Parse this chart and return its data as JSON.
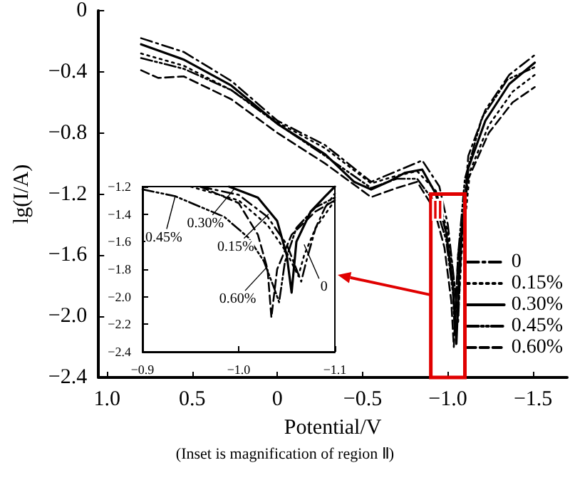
{
  "chart_data": [
    {
      "type": "line",
      "xlabel": "Potential/V",
      "ylabel": "lg(I/A)",
      "xlim": [
        1.05,
        -1.7
      ],
      "ylim": [
        -2.4,
        0
      ],
      "xticks": [
        {
          "value": 1.0,
          "label": "1.0"
        },
        {
          "value": 0.5,
          "label": "0.5"
        },
        0,
        {
          "value": -0.5,
          "label": "−0.5"
        },
        {
          "value": -1.0,
          "label": "−1.0"
        },
        {
          "value": -1.5,
          "label": "−1.5"
        }
      ],
      "yticks": [
        {
          "value": -2.4,
          "label": "−2.4"
        },
        {
          "value": -2.0,
          "label": "−2.0"
        },
        {
          "value": -1.6,
          "label": "−1.6"
        },
        {
          "value": -1.2,
          "label": "−1.2"
        },
        {
          "value": -0.8,
          "label": "−0.8"
        },
        {
          "value": -0.4,
          "label": "−0.4"
        },
        0
      ],
      "legend": "bottom right",
      "grid": false,
      "marker": "none",
      "annotations": [
        {
          "text": "Ⅱ",
          "x": -0.905,
          "y": -1.36
        },
        "(Inset is magnification of region Ⅱ)"
      ],
      "series": [
        {
          "name": "0",
          "color": "#000000",
          "line_style": "dashdot",
          "x": [
            0.8,
            0.55,
            0.27,
            0,
            -0.28,
            -0.55,
            -0.7,
            -0.85,
            -0.95,
            -1.0,
            -1.04,
            -1.06,
            -1.08,
            -1.12,
            -1.22,
            -1.36,
            -1.51
          ],
          "values": [
            -0.18,
            -0.27,
            -0.46,
            -0.72,
            -0.88,
            -1.12,
            -1.05,
            -0.98,
            -1.15,
            -1.4,
            -1.8,
            -2.05,
            -1.5,
            -0.95,
            -0.65,
            -0.42,
            -0.29
          ]
        },
        {
          "name": "0.15%",
          "color": "#000000",
          "line_style": "dotted",
          "x": [
            0.8,
            0.55,
            0.27,
            0,
            -0.28,
            -0.55,
            -0.7,
            -0.82,
            -0.93,
            -1.0,
            -1.04,
            -1.06,
            -1.08,
            -1.13,
            -1.24,
            -1.38,
            -1.51
          ],
          "values": [
            -0.28,
            -0.36,
            -0.52,
            -0.73,
            -0.9,
            -1.13,
            -1.08,
            -1.05,
            -1.18,
            -1.45,
            -1.8,
            -2.0,
            -1.6,
            -1.05,
            -0.75,
            -0.53,
            -0.42
          ]
        },
        {
          "name": "0.30%",
          "color": "#000000",
          "line_style": "solid",
          "x": [
            0.8,
            0.55,
            0.27,
            0,
            -0.28,
            -0.45,
            -0.55,
            -0.65,
            -0.75,
            -0.85,
            -0.93,
            -0.99,
            -1.03,
            -1.05,
            -1.07,
            -1.12,
            -1.22,
            -1.36,
            -1.51
          ],
          "values": [
            -0.22,
            -0.32,
            -0.49,
            -0.74,
            -0.94,
            -1.12,
            -1.17,
            -1.12,
            -1.06,
            -1.04,
            -1.2,
            -1.45,
            -1.8,
            -2.18,
            -1.6,
            -1.03,
            -0.72,
            -0.48,
            -0.34
          ]
        },
        {
          "name": "0.45%",
          "color": "#000000",
          "line_style": "dashdotdot",
          "x": [
            0.8,
            0.55,
            0.27,
            0,
            -0.28,
            -0.55,
            -0.7,
            -0.82,
            -0.92,
            -0.99,
            -1.03,
            -1.04,
            -1.06,
            -1.1,
            -1.2,
            -1.35,
            -1.51
          ],
          "values": [
            -0.31,
            -0.38,
            -0.52,
            -0.74,
            -0.95,
            -1.16,
            -1.1,
            -1.1,
            -1.25,
            -1.5,
            -1.85,
            -2.1,
            -1.6,
            -1.1,
            -0.7,
            -0.45,
            -0.37
          ]
        },
        {
          "name": "0.60%",
          "color": "#000000",
          "line_style": "dashed",
          "x": [
            0.8,
            0.7,
            0.55,
            0.27,
            0,
            -0.28,
            -0.55,
            -0.7,
            -0.82,
            -0.92,
            -0.98,
            -1.02,
            -1.035,
            -1.06,
            -1.12,
            -1.24,
            -1.38,
            -1.51
          ],
          "values": [
            -0.39,
            -0.44,
            -0.43,
            -0.58,
            -0.8,
            -1.0,
            -1.22,
            -1.16,
            -1.12,
            -1.3,
            -1.55,
            -1.9,
            -2.2,
            -1.6,
            -1.1,
            -0.8,
            -0.6,
            -0.5
          ]
        }
      ]
    },
    {
      "type": "line",
      "xlim": [
        -0.9,
        -1.1
      ],
      "ylim": [
        -2.4,
        -1.2
      ],
      "xticks": [
        {
          "value": -0.9,
          "label": "−0.9"
        },
        {
          "value": -1.0,
          "label": "−1.0"
        },
        {
          "value": -1.1,
          "label": "−1.1"
        }
      ],
      "yticks": [
        {
          "value": -2.4,
          "label": "−2.4"
        },
        {
          "value": -2.2,
          "label": "−2.2"
        },
        {
          "value": -2.0,
          "label": "−2.0"
        },
        {
          "value": -1.8,
          "label": "−1.8"
        },
        {
          "value": -1.6,
          "label": "−1.6"
        },
        {
          "value": -1.4,
          "label": "−1.4"
        },
        {
          "value": -1.2,
          "label": "−1.2"
        }
      ],
      "grid": false,
      "marker": "none",
      "annotations": [
        {
          "text": "0.45%",
          "x": -0.934,
          "y": -1.27
        },
        {
          "text": "0.30%",
          "x": -0.995,
          "y": -1.22
        },
        {
          "text": "0.15%",
          "x": -1.031,
          "y": -1.4
        },
        {
          "text": "0.60%",
          "x": -1.03,
          "y": -1.78
        },
        {
          "text": "0",
          "x": -1.068,
          "y": -1.62
        }
      ],
      "series": [
        {
          "color": "#000000",
          "line_style": "dashdot",
          "x": [
            -0.96,
            -1.0,
            -1.03,
            -1.05,
            -1.06,
            -1.065,
            -1.07,
            -1.08,
            -1.09,
            -1.1
          ],
          "values": [
            -1.2,
            -1.26,
            -1.42,
            -1.62,
            -1.8,
            -1.89,
            -1.75,
            -1.5,
            -1.35,
            -1.25
          ]
        },
        {
          "color": "#000000",
          "line_style": "dotted",
          "x": [
            -0.95,
            -1.0,
            -1.03,
            -1.05,
            -1.062,
            -1.068,
            -1.08,
            -1.1
          ],
          "values": [
            -1.2,
            -1.3,
            -1.48,
            -1.68,
            -1.85,
            -1.7,
            -1.5,
            -1.3
          ]
        },
        {
          "color": "#000000",
          "line_style": "solid",
          "x": [
            -0.99,
            -1.02,
            -1.04,
            -1.05,
            -1.055,
            -1.06,
            -1.075,
            -1.09,
            -1.1
          ],
          "values": [
            -1.2,
            -1.28,
            -1.45,
            -1.7,
            -1.97,
            -1.6,
            -1.38,
            -1.27,
            -1.2
          ]
        },
        {
          "color": "#000000",
          "line_style": "dashdotdot",
          "x": [
            -0.9,
            -0.934,
            -0.985,
            -1.01,
            -1.026,
            -1.037,
            -1.042,
            -1.048,
            -1.06,
            -1.08,
            -1.1
          ],
          "values": [
            -1.22,
            -1.27,
            -1.42,
            -1.57,
            -1.74,
            -1.94,
            -2.04,
            -1.75,
            -1.5,
            -1.35,
            -1.28
          ]
        },
        {
          "color": "#000000",
          "line_style": "dashed",
          "x": [
            -0.96,
            -1.0,
            -1.02,
            -1.03,
            -1.034,
            -1.04,
            -1.055,
            -1.08,
            -1.1
          ],
          "values": [
            -1.2,
            -1.32,
            -1.55,
            -1.8,
            -2.15,
            -1.8,
            -1.55,
            -1.38,
            -1.3
          ]
        }
      ]
    }
  ]
}
